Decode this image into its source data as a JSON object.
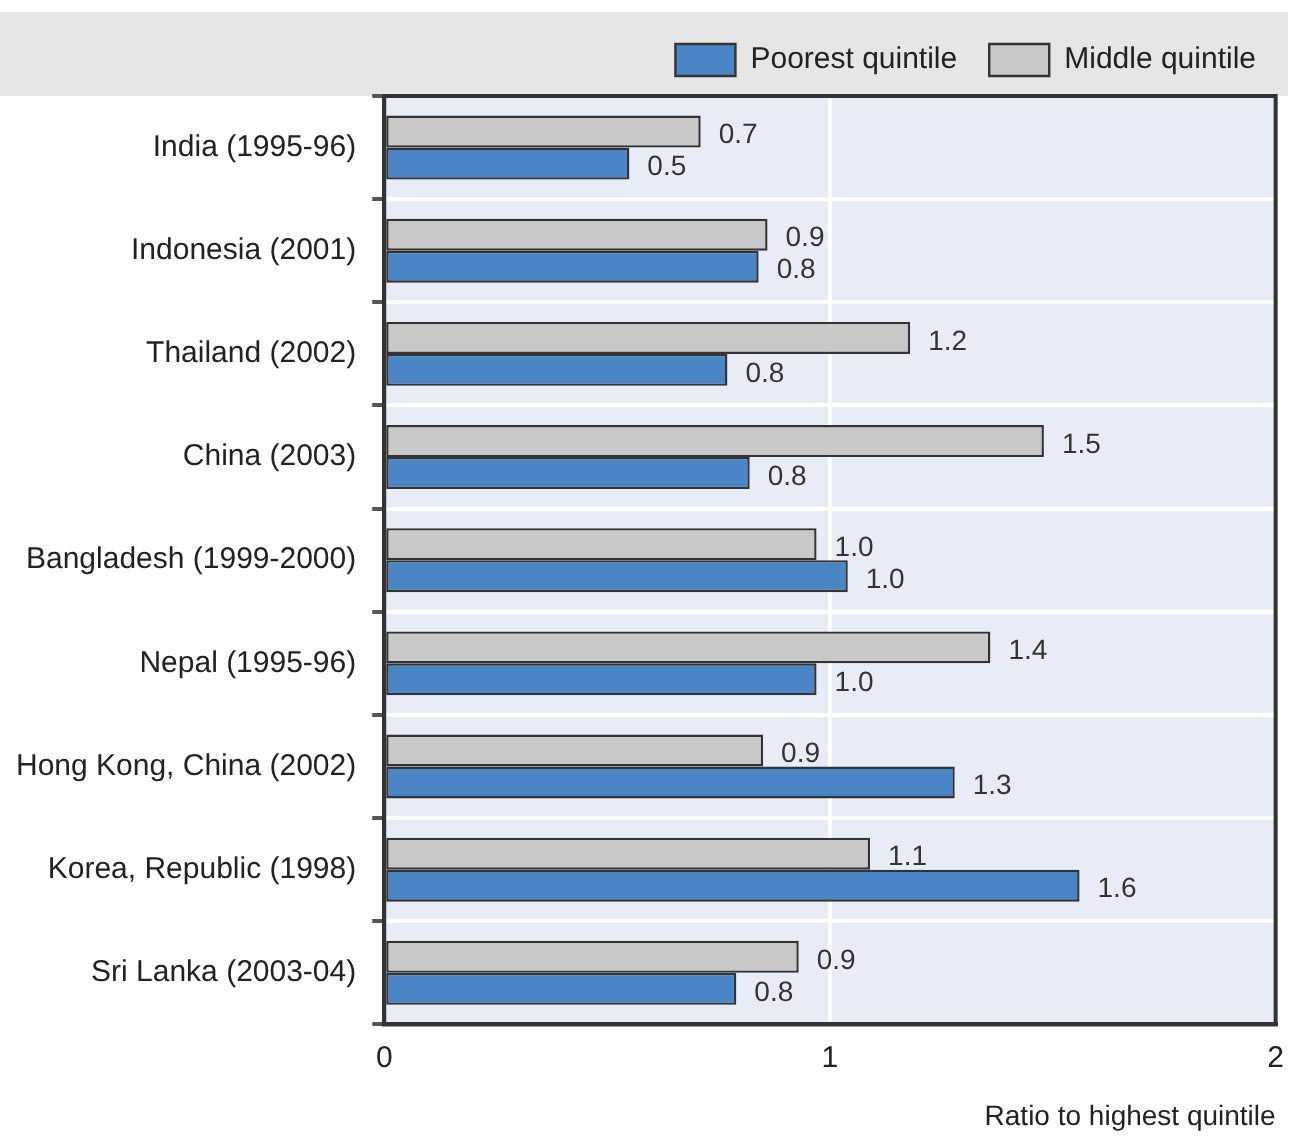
{
  "chart_data": {
    "type": "bar",
    "orientation": "horizontal",
    "xlabel": "Ratio to highest quintile",
    "categories": [
      "India (1995-96)",
      "Indonesia (2001)",
      "Thailand (2002)",
      "China (2003)",
      "Bangladesh (1999-2000)",
      "Nepal (1995-96)",
      "Hong Kong, China (2002)",
      "Korea, Republic (1998)",
      "Sri Lanka (2003-04)"
    ],
    "series": [
      {
        "name": "Middle quintile",
        "color": "#c8c8c8",
        "values": [
          0.71,
          0.86,
          1.18,
          1.48,
          0.97,
          1.36,
          0.85,
          1.09,
          0.93
        ],
        "value_labels": [
          "0.7",
          "0.9",
          "1.2",
          "1.5",
          "1.0",
          "1.4",
          "0.9",
          "1.1",
          "0.9"
        ]
      },
      {
        "name": "Poorest quintile",
        "color": "#4a86c5",
        "values": [
          0.55,
          0.84,
          0.77,
          0.82,
          1.04,
          0.97,
          1.28,
          1.56,
          0.79
        ],
        "value_labels": [
          "0.5",
          "0.8",
          "0.8",
          "0.8",
          "1.0",
          "1.0",
          "1.3",
          "1.6",
          "0.8"
        ]
      }
    ],
    "xlim": [
      0,
      2
    ],
    "xticks": [
      0,
      1,
      2
    ],
    "grid": true,
    "legend": "top right"
  }
}
